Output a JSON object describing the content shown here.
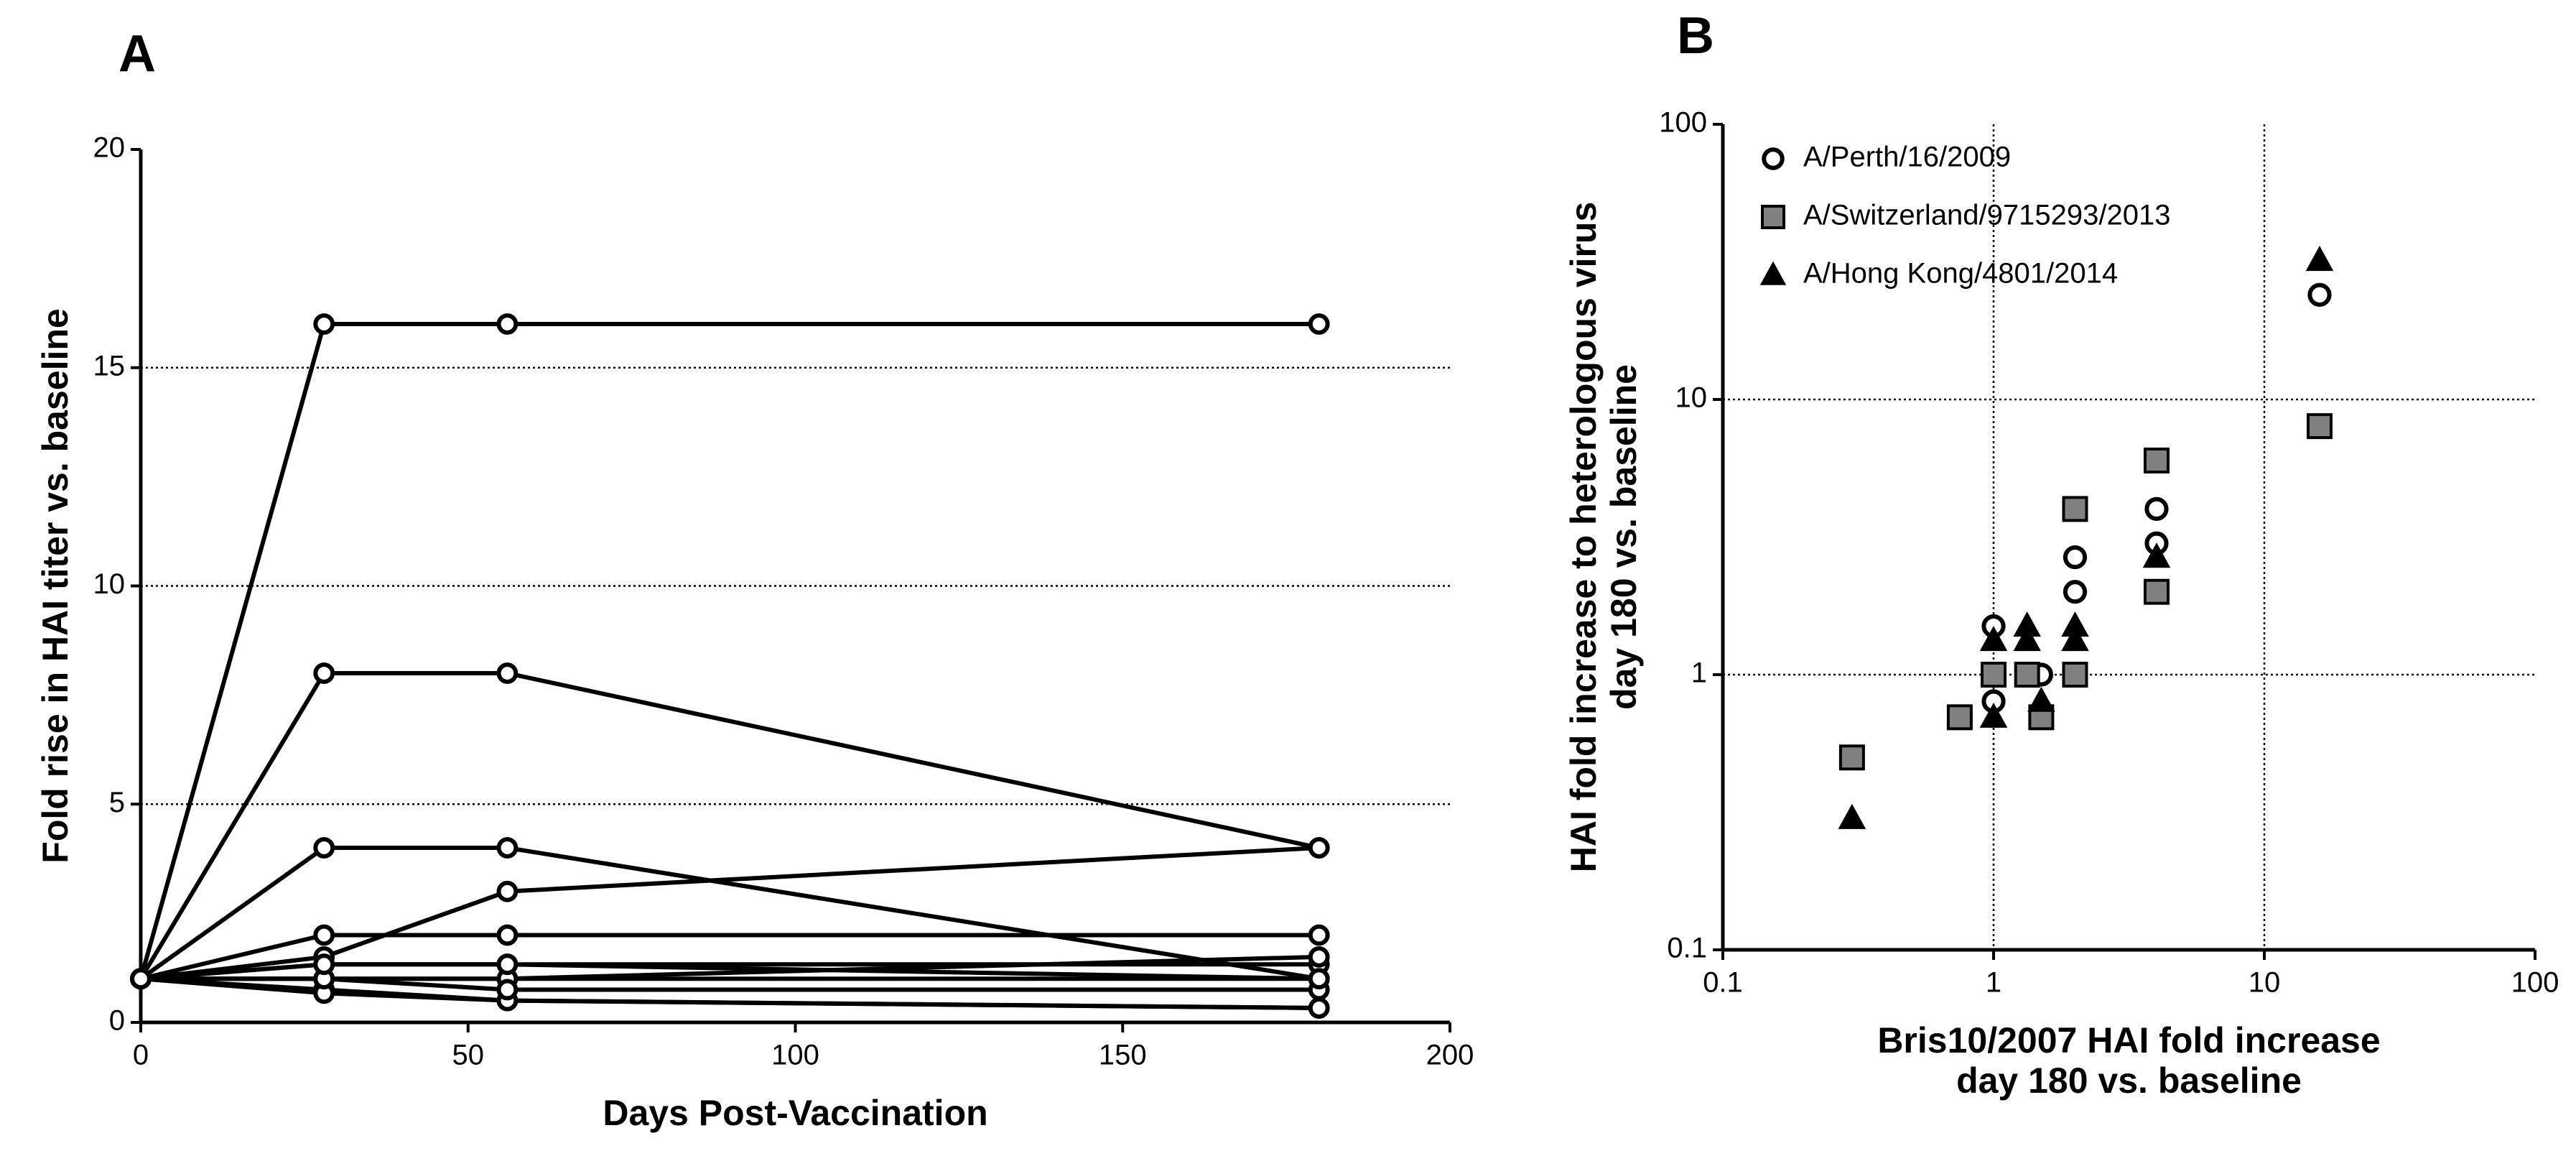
{
  "chart_data": [
    {
      "type": "line",
      "panel_label": "A",
      "x_label": "Days Post-Vaccination",
      "y_label": "Fold rise in HAI titer vs. baseline",
      "x": [
        0,
        28,
        56,
        180
      ],
      "xlim": [
        0,
        200
      ],
      "xticks": [
        0,
        50,
        100,
        150,
        200
      ],
      "ylim": [
        0,
        20
      ],
      "yticks": [
        0,
        5,
        10,
        15,
        20
      ],
      "grid": true,
      "color": "#000000",
      "marker": "circle",
      "marker_fill": "#ffffff",
      "series": [
        {
          "values": [
            1,
            16,
            16,
            16
          ]
        },
        {
          "values": [
            1,
            8,
            8,
            4
          ]
        },
        {
          "values": [
            1,
            4,
            4,
            1
          ]
        },
        {
          "values": [
            1,
            1.5,
            3,
            4
          ]
        },
        {
          "values": [
            1,
            2,
            2,
            2
          ]
        },
        {
          "values": [
            1,
            1.33,
            1.33,
            1.33
          ]
        },
        {
          "values": [
            1,
            1,
            1,
            1.5
          ]
        },
        {
          "values": [
            1,
            1,
            1,
            1
          ]
        },
        {
          "values": [
            1,
            0.75,
            0.5,
            0.33
          ]
        },
        {
          "values": [
            1,
            0.67,
            0.5,
            0.33
          ]
        },
        {
          "values": [
            1,
            1,
            0.75,
            0.75
          ]
        },
        {
          "values": [
            1,
            1.33,
            1.33,
            1
          ]
        }
      ]
    },
    {
      "type": "scatter",
      "panel_label": "B",
      "x_label": [
        "Bris10/2007 HAI fold increase",
        "day 180 vs. baseline"
      ],
      "y_label": [
        "HAI fold increase to heterologous virus",
        "day 180 vs. baseline"
      ],
      "log_scale": true,
      "xlim": [
        0.1,
        100
      ],
      "xticks": [
        0.1,
        1,
        10,
        100
      ],
      "ylim": [
        0.1,
        100
      ],
      "yticks": [
        0.1,
        1,
        10,
        100
      ],
      "grid": true,
      "legend": "top-left",
      "series": [
        {
          "name": "A/Perth/16/2009",
          "marker": "circle",
          "color": "#000000",
          "fill": "#ffffff",
          "x": [
            0.3,
            1,
            1,
            1,
            0.75,
            1.33,
            1.5,
            2,
            2,
            4,
            4,
            16
          ],
          "y": [
            0.5,
            1.5,
            1,
            0.8,
            0.7,
            1,
            1,
            2.67,
            2,
            4,
            3,
            24
          ]
        },
        {
          "name": "A/Switzerland/9715293/2013",
          "marker": "square",
          "color": "#000000",
          "fill": "#808080",
          "x": [
            0.3,
            0.75,
            1,
            1.33,
            1.5,
            2,
            2,
            4,
            4,
            16
          ],
          "y": [
            0.5,
            0.7,
            1,
            1,
            0.7,
            4,
            1,
            6,
            2,
            8
          ]
        },
        {
          "name": "A/Hong Kong/4801/2014",
          "marker": "triangle",
          "color": "#000000",
          "fill": "#000000",
          "x": [
            0.3,
            1,
            1,
            1.33,
            1.33,
            1.5,
            2,
            2,
            4,
            16
          ],
          "y": [
            0.3,
            0.7,
            1.33,
            1.5,
            1.33,
            0.8,
            1.5,
            1.33,
            2.67,
            32
          ]
        }
      ]
    }
  ]
}
